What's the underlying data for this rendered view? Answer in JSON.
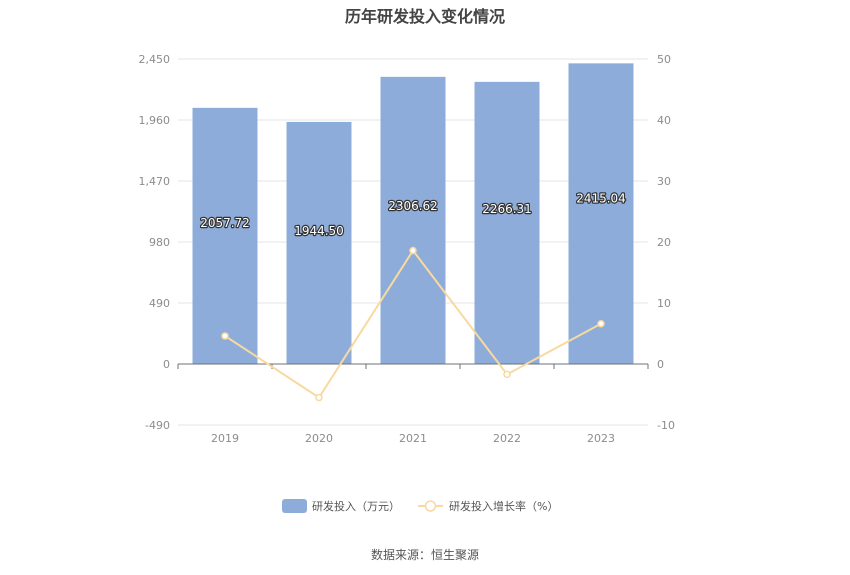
{
  "chart_data": {
    "type": "bar",
    "title": "历年研发投入变化情况",
    "categories": [
      "2019",
      "2020",
      "2021",
      "2022",
      "2023"
    ],
    "series": [
      {
        "name": "研发投入（万元）",
        "type": "bar",
        "axis": "left",
        "values": [
          2057.72,
          1944.5,
          2306.62,
          2266.31,
          2415.04
        ],
        "labels": [
          "2057.72",
          "1944.50",
          "2306.62",
          "2266.31",
          "2415.04"
        ],
        "color": "#8eacd9"
      },
      {
        "name": "研发投入增长率（%）",
        "type": "line",
        "axis": "right",
        "values": [
          4.6,
          -5.5,
          18.6,
          -1.7,
          6.6
        ],
        "color": "#f8d9a0"
      }
    ],
    "y_left": {
      "ylim": [
        -490,
        2450
      ],
      "ticks": [
        "2,450",
        "1,960",
        "1,470",
        "980",
        "490",
        "0",
        "-490"
      ]
    },
    "y_right": {
      "ylim": [
        -10,
        50
      ],
      "ticks": [
        "50",
        "40",
        "30",
        "20",
        "10",
        "0",
        "-10"
      ]
    },
    "grid": true,
    "legend_position": "bottom"
  },
  "source_note": "数据来源：恒生聚源"
}
